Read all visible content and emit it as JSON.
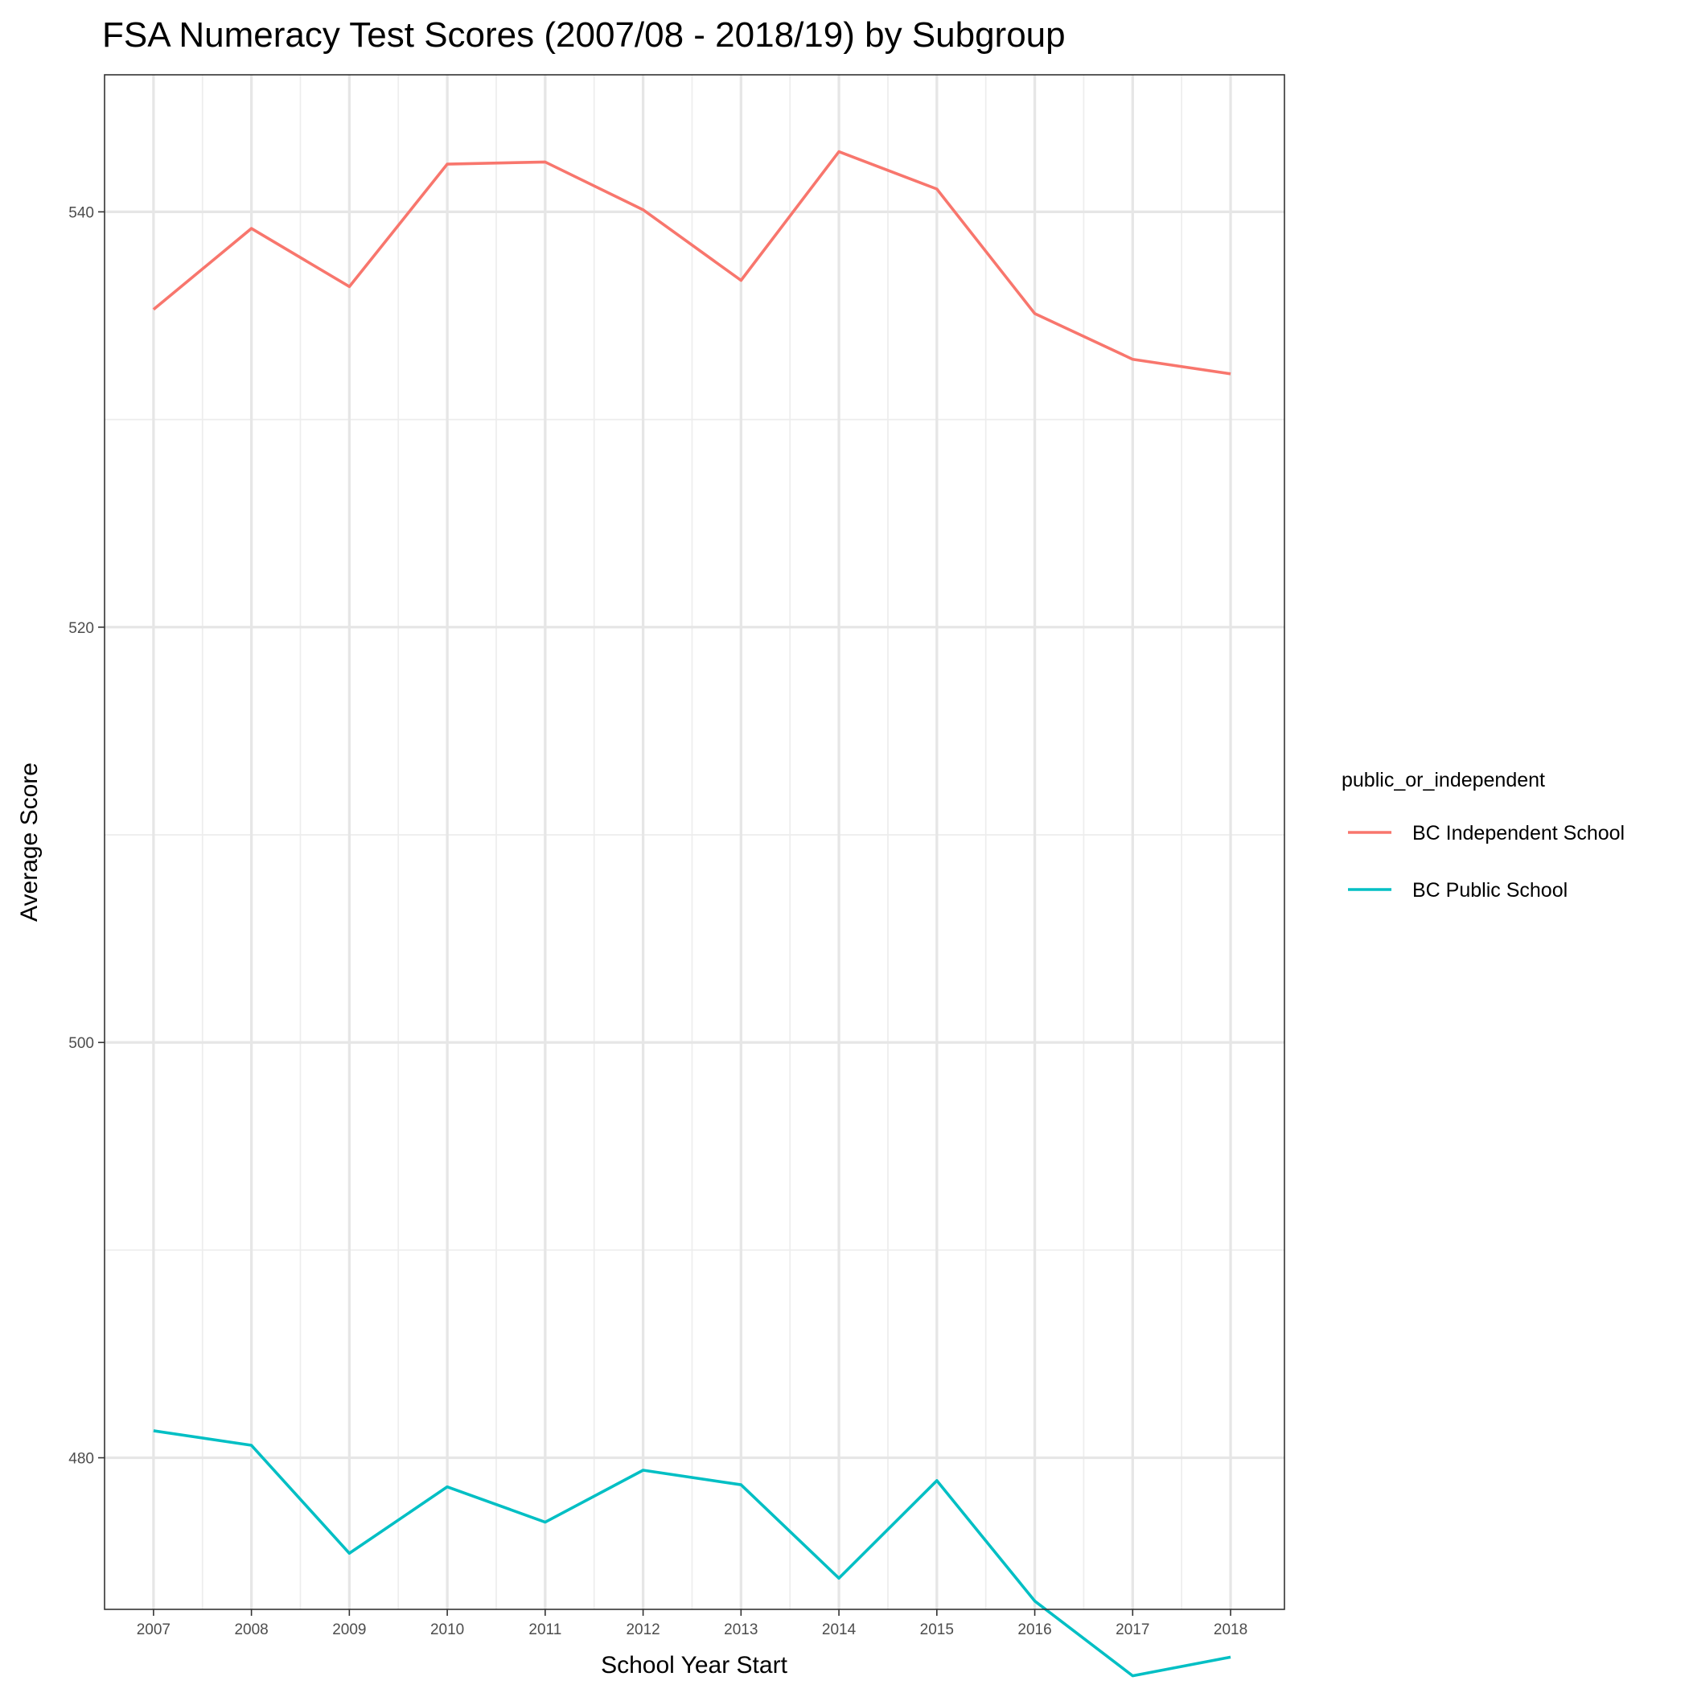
{
  "chart_data": {
    "type": "line",
    "title": "FSA Numeracy Test Scores (2007/08 - 2018/19) by Subgroup",
    "xlabel": "School Year Start",
    "ylabel": "Average Score",
    "x": [
      2007,
      2008,
      2009,
      2010,
      2011,
      2012,
      2013,
      2014,
      2015,
      2016,
      2017,
      2018
    ],
    "x_tick_labels": [
      "2007",
      "2008",
      "2009",
      "2010",
      "2011",
      "2012",
      "2013",
      "2014",
      "2015",
      "2016",
      "2017",
      "2018"
    ],
    "xlim": [
      2006.5,
      2018.55
    ],
    "ylim": [
      472.7,
      546.6
    ],
    "y_ticks": [
      480,
      500,
      520,
      540
    ],
    "y_tick_labels": [
      "480",
      "500",
      "520",
      "540"
    ],
    "grid": true,
    "legend": {
      "title": "public_or_independent",
      "position": "right"
    },
    "series": [
      {
        "name": "BC Independent School",
        "color": "#F8766D",
        "values": [
          535.3,
          539.2,
          536.4,
          542.3,
          542.4,
          540.1,
          536.7,
          542.9,
          541.1,
          535.1,
          532.9,
          532.2
        ]
      },
      {
        "name": "BC Public School",
        "color": "#00BFC4",
        "values": [
          481.3,
          480.6,
          475.4,
          478.6,
          476.9,
          479.4,
          478.7,
          474.2,
          478.9,
          473.1,
          469.5,
          470.4
        ]
      }
    ]
  }
}
